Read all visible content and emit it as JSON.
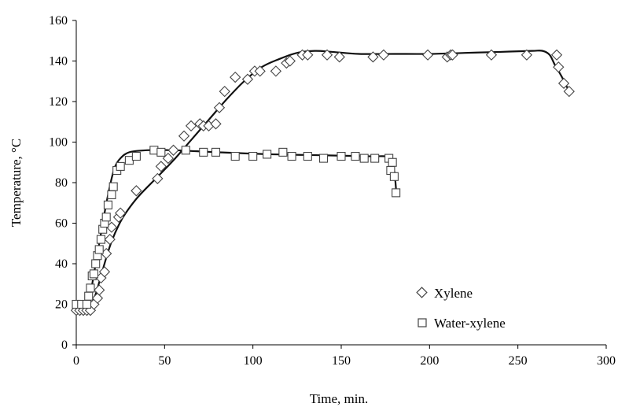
{
  "chart_data": {
    "type": "scatter",
    "xlabel": "Time, min.",
    "ylabel": "Temperature, °C",
    "xlim": [
      0,
      300
    ],
    "ylim": [
      0,
      160
    ],
    "xticks": [
      0,
      50,
      100,
      150,
      200,
      250,
      300
    ],
    "yticks": [
      0,
      20,
      40,
      60,
      80,
      100,
      120,
      140,
      160
    ],
    "grid": false,
    "legend_position": "bottom-right",
    "series": [
      {
        "name": "Xylene",
        "marker": "diamond",
        "points": [
          [
            0,
            17
          ],
          [
            2,
            17
          ],
          [
            4,
            17
          ],
          [
            6,
            17
          ],
          [
            8,
            17
          ],
          [
            10,
            20
          ],
          [
            12,
            23
          ],
          [
            13,
            27
          ],
          [
            14,
            33
          ],
          [
            16,
            36
          ],
          [
            17,
            45
          ],
          [
            19,
            52
          ],
          [
            20,
            58
          ],
          [
            24,
            63
          ],
          [
            25,
            65
          ],
          [
            34,
            76
          ],
          [
            46,
            82
          ],
          [
            48,
            88
          ],
          [
            52,
            92
          ],
          [
            55,
            96
          ],
          [
            61,
            103
          ],
          [
            65,
            108
          ],
          [
            70,
            109
          ],
          [
            72,
            108
          ],
          [
            75,
            108
          ],
          [
            79,
            109
          ],
          [
            81,
            117
          ],
          [
            84,
            125
          ],
          [
            90,
            132
          ],
          [
            97,
            131
          ],
          [
            101,
            135
          ],
          [
            104,
            135
          ],
          [
            113,
            135
          ],
          [
            119,
            139
          ],
          [
            121,
            140
          ],
          [
            128,
            143
          ],
          [
            131,
            143
          ],
          [
            142,
            143
          ],
          [
            149,
            142
          ],
          [
            168,
            142
          ],
          [
            174,
            143
          ],
          [
            199,
            143
          ],
          [
            210,
            142
          ],
          [
            212,
            143
          ],
          [
            213,
            143
          ],
          [
            235,
            143
          ],
          [
            255,
            143
          ],
          [
            272,
            143
          ],
          [
            273,
            137
          ],
          [
            276,
            129
          ],
          [
            279,
            125
          ]
        ],
        "fit_curve": [
          [
            0,
            16
          ],
          [
            5,
            17
          ],
          [
            8,
            19
          ],
          [
            11,
            25
          ],
          [
            14,
            34
          ],
          [
            17,
            43
          ],
          [
            20,
            51
          ],
          [
            24,
            59
          ],
          [
            28,
            65
          ],
          [
            35,
            73
          ],
          [
            45,
            82
          ],
          [
            55,
            91
          ],
          [
            65,
            101
          ],
          [
            75,
            111
          ],
          [
            85,
            121
          ],
          [
            95,
            130
          ],
          [
            105,
            137
          ],
          [
            115,
            141
          ],
          [
            125,
            144
          ],
          [
            135,
            145
          ],
          [
            145,
            144.5
          ],
          [
            160,
            143.5
          ],
          [
            180,
            143.5
          ],
          [
            200,
            143.5
          ],
          [
            220,
            144
          ],
          [
            240,
            144.5
          ],
          [
            258,
            145
          ],
          [
            264,
            145
          ],
          [
            268,
            143
          ],
          [
            271,
            138
          ],
          [
            275,
            132
          ],
          [
            279,
            125
          ]
        ]
      },
      {
        "name": "Water-xylene",
        "marker": "square",
        "points": [
          [
            0,
            20
          ],
          [
            3,
            20
          ],
          [
            6,
            20
          ],
          [
            7,
            24
          ],
          [
            8,
            28
          ],
          [
            9,
            34
          ],
          [
            10,
            35
          ],
          [
            11,
            40
          ],
          [
            12,
            44
          ],
          [
            13,
            47
          ],
          [
            14,
            52
          ],
          [
            15,
            57
          ],
          [
            16,
            60
          ],
          [
            17,
            63
          ],
          [
            18,
            69
          ],
          [
            20,
            74
          ],
          [
            21,
            78
          ],
          [
            23,
            86
          ],
          [
            25,
            88
          ],
          [
            30,
            91
          ],
          [
            34,
            93
          ],
          [
            44,
            96
          ],
          [
            48,
            95
          ],
          [
            62,
            96
          ],
          [
            72,
            95
          ],
          [
            79,
            95
          ],
          [
            90,
            93
          ],
          [
            100,
            93
          ],
          [
            108,
            94
          ],
          [
            117,
            95
          ],
          [
            122,
            93
          ],
          [
            131,
            93
          ],
          [
            140,
            92
          ],
          [
            150,
            93
          ],
          [
            158,
            93
          ],
          [
            163,
            92
          ],
          [
            169,
            92
          ],
          [
            177,
            92
          ],
          [
            178,
            86
          ],
          [
            179,
            90
          ],
          [
            180,
            83
          ],
          [
            181,
            75
          ]
        ],
        "fit_curve": [
          [
            0,
            16
          ],
          [
            4,
            16
          ],
          [
            6,
            18
          ],
          [
            8,
            25
          ],
          [
            10,
            35
          ],
          [
            12,
            45
          ],
          [
            14,
            55
          ],
          [
            16,
            65
          ],
          [
            18,
            74
          ],
          [
            20,
            82
          ],
          [
            22,
            88
          ],
          [
            25,
            92
          ],
          [
            30,
            95
          ],
          [
            40,
            96
          ],
          [
            55,
            96
          ],
          [
            80,
            95
          ],
          [
            110,
            94
          ],
          [
            140,
            93.5
          ],
          [
            165,
            93
          ],
          [
            175,
            93
          ],
          [
            178,
            92
          ],
          [
            179.5,
            89
          ],
          [
            180.5,
            82
          ],
          [
            181,
            77
          ]
        ]
      }
    ]
  }
}
